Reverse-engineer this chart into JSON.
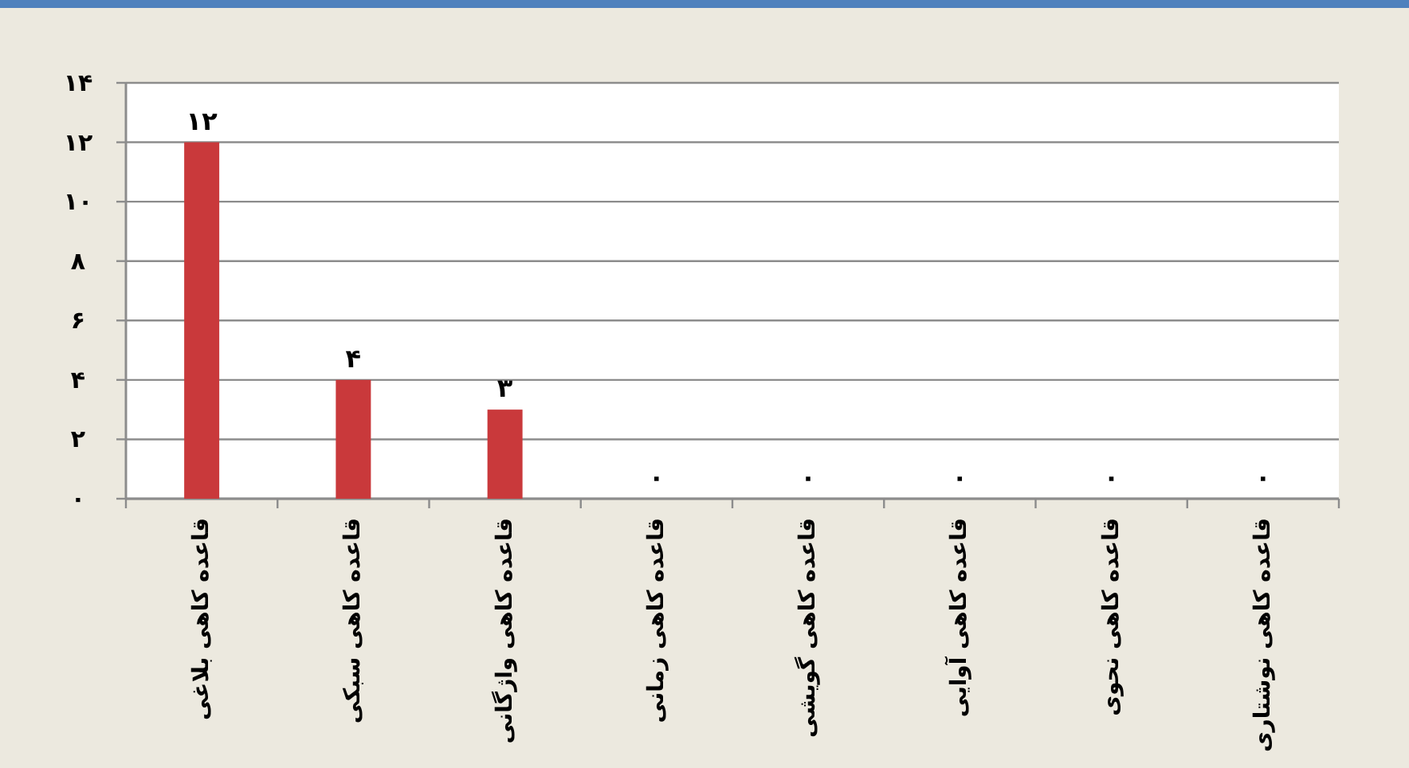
{
  "chart_data": {
    "type": "bar",
    "categories": [
      "قاعده کاهی بلاغی",
      "قاعده کاهی سبکی",
      "قاعده کاهی واژگانی",
      "قاعده کاهی زمانی",
      "قاعده کاهی گویشی",
      "قاعده کاهی آوایی",
      "قاعده کاهی نحوی",
      "قاعده کاهی نوشتاری"
    ],
    "values": [
      12,
      4,
      3,
      0,
      0,
      0,
      0,
      0
    ],
    "value_labels": [
      "۱۲",
      "۴",
      "۳",
      "۰",
      "۰",
      "۰",
      "۰",
      "۰"
    ],
    "color": "#c9393b",
    "ylim": [
      0,
      14
    ],
    "yticks": [
      {
        "value": 0,
        "label": "۰"
      },
      {
        "value": 2,
        "label": "۲"
      },
      {
        "value": 4,
        "label": "۴"
      },
      {
        "value": 6,
        "label": "۶"
      },
      {
        "value": 8,
        "label": "۸"
      },
      {
        "value": 10,
        "label": "۱۰"
      },
      {
        "value": 12,
        "label": "۱۲"
      },
      {
        "value": 14,
        "label": "۱۴"
      }
    ],
    "grid": "y"
  }
}
